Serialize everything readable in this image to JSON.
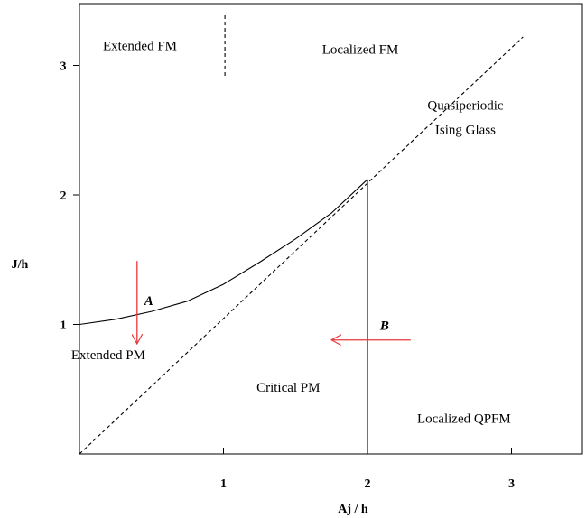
{
  "chart_data": {
    "type": "line",
    "title": "",
    "xlabel": "Aj / h",
    "ylabel": "J/h",
    "xlim": [
      0,
      3.5
    ],
    "ylim": [
      0,
      3.4
    ],
    "x_ticks": [
      {
        "value": 1,
        "label": "1"
      },
      {
        "value": 2,
        "label": "2"
      },
      {
        "value": 3,
        "label": "3"
      }
    ],
    "y_ticks": [
      {
        "value": 1,
        "label": "1"
      },
      {
        "value": 2,
        "label": "2"
      },
      {
        "value": 3,
        "label": "3"
      }
    ],
    "grid": false,
    "series": [
      {
        "style": "dashed",
        "color": "#000000",
        "points": [
          [
            0,
            0
          ],
          [
            3.08,
            3.22
          ]
        ]
      },
      {
        "style": "solid",
        "color": "#000000",
        "points": [
          [
            0,
            1.0
          ],
          [
            0.25,
            1.04
          ],
          [
            0.5,
            1.1
          ],
          [
            0.75,
            1.18
          ],
          [
            1.0,
            1.31
          ],
          [
            1.25,
            1.48
          ],
          [
            1.5,
            1.66
          ],
          [
            1.75,
            1.86
          ],
          [
            2.0,
            2.12
          ]
        ]
      },
      {
        "style": "solid",
        "color": "#000000",
        "points": [
          [
            2.0,
            2.12
          ],
          [
            2.0,
            0
          ]
        ]
      },
      {
        "style": "dashed",
        "color": "#000000",
        "points": [
          [
            1.01,
            2.92
          ],
          [
            1.01,
            3.4
          ]
        ]
      }
    ],
    "arrows": [
      {
        "label": "A",
        "color": "#e8383d",
        "from": [
          0.4,
          1.49
        ],
        "to": [
          0.4,
          0.85
        ]
      },
      {
        "label": "B",
        "color": "#e8383d",
        "from": [
          2.3,
          0.88
        ],
        "to": [
          1.75,
          0.88
        ]
      }
    ],
    "annotations": [
      {
        "text": "Extended FM",
        "x": 0.42,
        "y": 3.12
      },
      {
        "text": "Localized FM",
        "x": 1.95,
        "y": 3.09
      },
      {
        "text": "Quasiperiodic",
        "x": 2.68,
        "y": 2.66
      },
      {
        "text": "Ising Glass",
        "x": 2.68,
        "y": 2.47
      },
      {
        "text": "Extended PM",
        "x": 0.2,
        "y": 0.73
      },
      {
        "text": "Critical PM",
        "x": 1.45,
        "y": 0.48
      },
      {
        "text": "Localized QPFM",
        "x": 2.67,
        "y": 0.24
      }
    ]
  }
}
